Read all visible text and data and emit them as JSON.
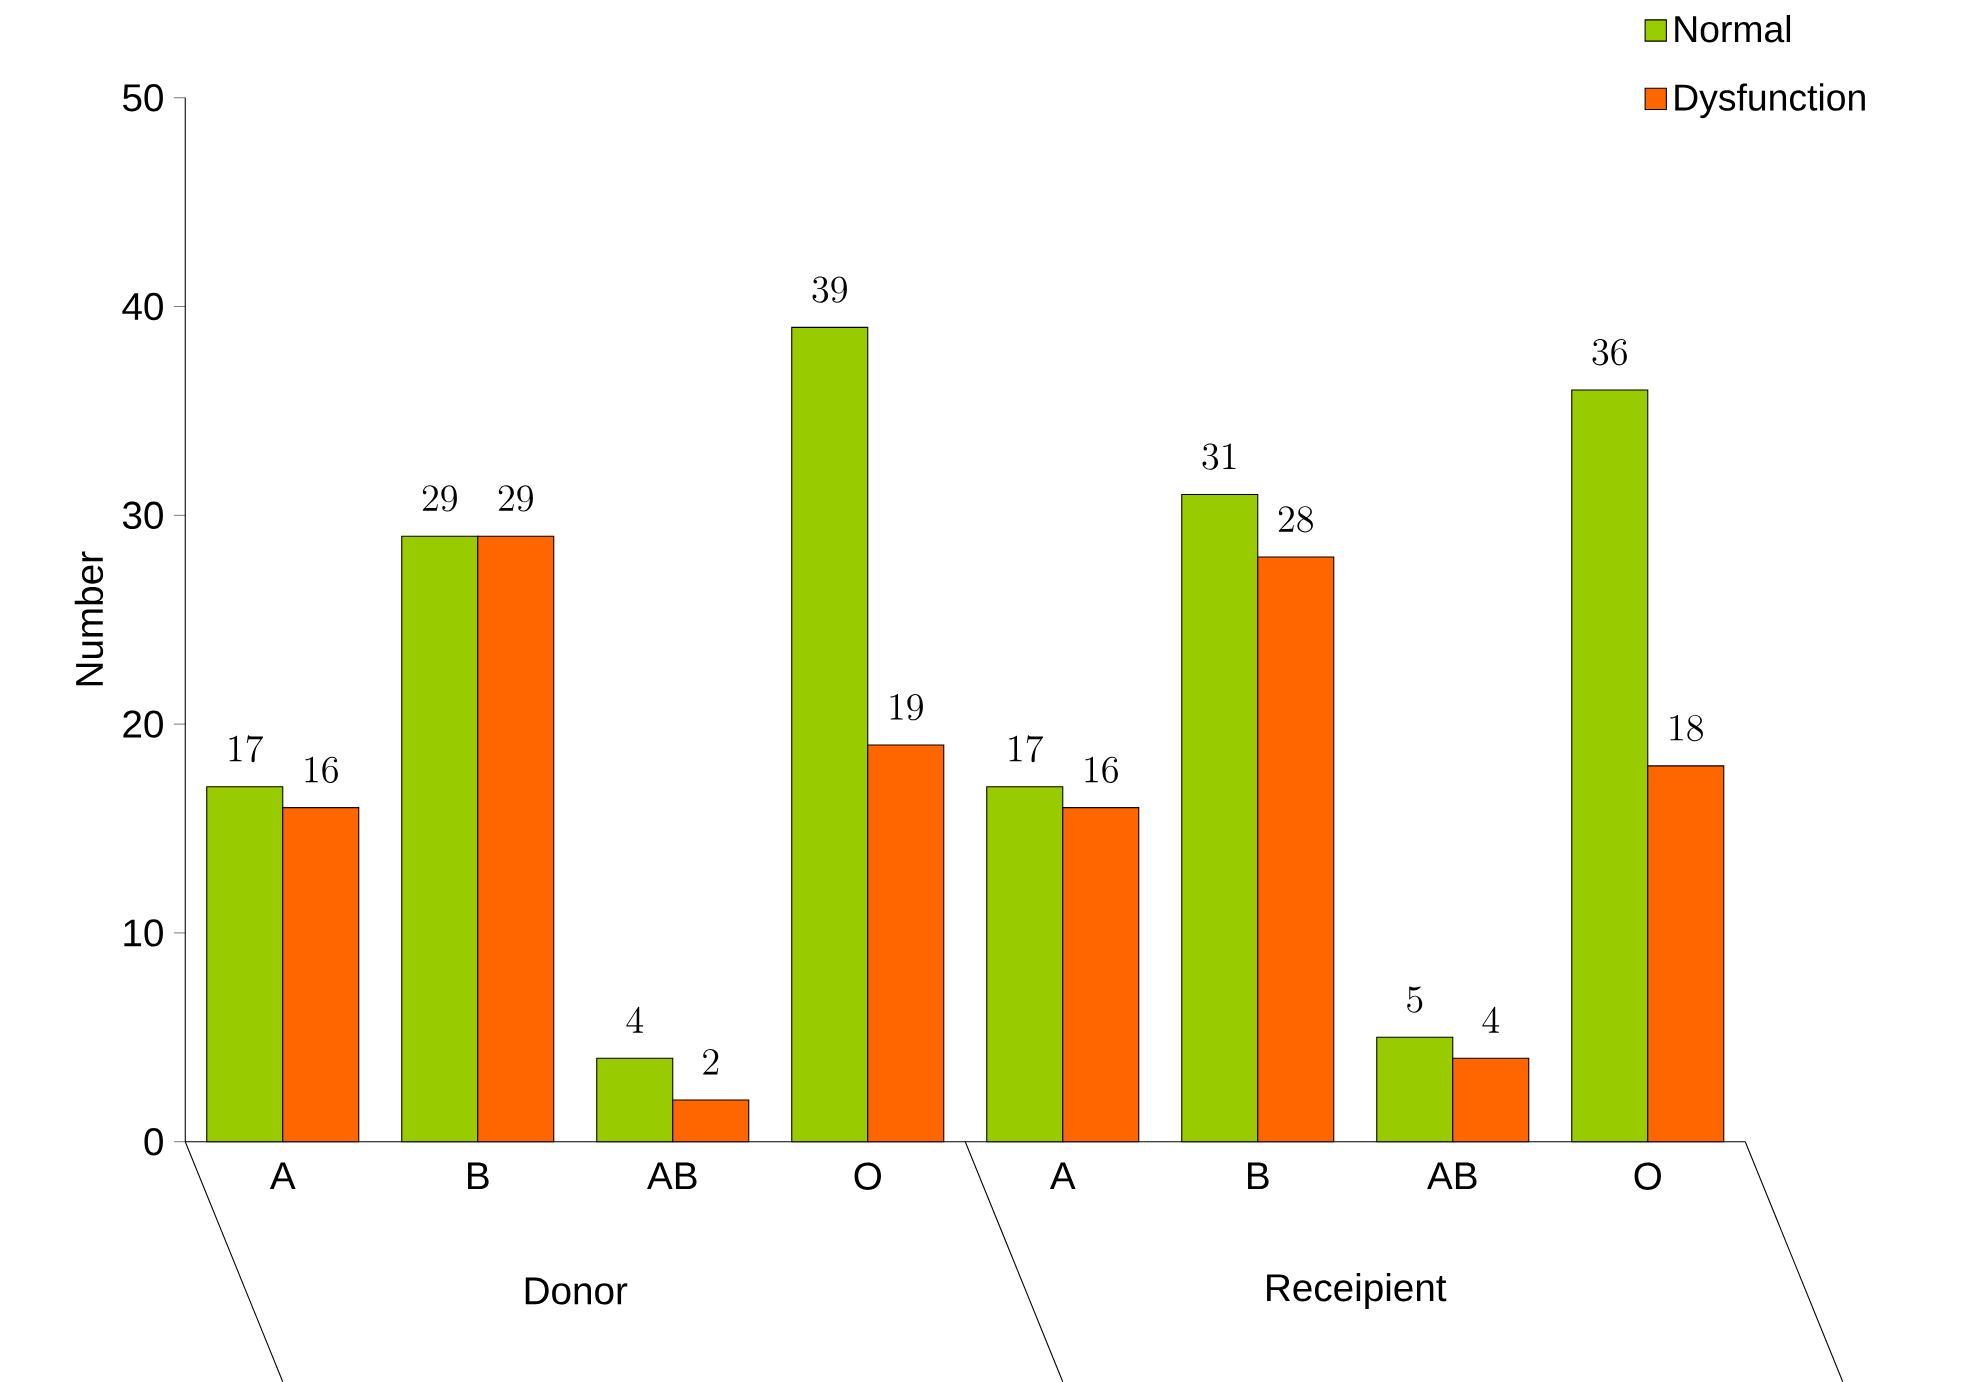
{
  "chart_data": {
    "type": "bar",
    "ylabel": "Number",
    "categories": [
      "A",
      "B",
      "AB",
      "O",
      "A",
      "B",
      "AB",
      "O"
    ],
    "annotations": [
      "Donor",
      "Receipient"
    ],
    "series": [
      {
        "name": "Normal",
        "color": "#99cc00",
        "values": [
          17,
          29,
          4,
          39,
          17,
          31,
          5,
          36
        ]
      },
      {
        "name": "Dysfunction",
        "color": "#ff6600",
        "values": [
          16,
          29,
          2,
          19,
          16,
          28,
          4,
          18
        ]
      }
    ],
    "ylim": [
      0,
      50
    ],
    "yticks": [
      0,
      10,
      20,
      30,
      40,
      50
    ],
    "data_labels": true,
    "legend": "top right",
    "grid": false
  }
}
